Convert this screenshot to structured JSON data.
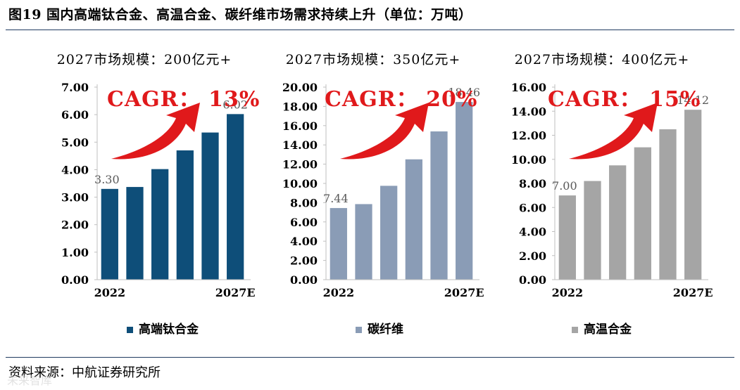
{
  "figure": {
    "title": "图19  国内高端钛合金、高温合金、碳纤维市场需求持续上升（单位：万吨）",
    "source": "资料来源：中航证券研究所",
    "watermark": "未来智库"
  },
  "chart_data": [
    {
      "type": "bar",
      "series_name": "高端钛合金",
      "subtitle": "2027市场规模：200亿元+",
      "cagr_label": "CAGR： 13%",
      "color": "#0e4e79",
      "categories": [
        "2022",
        "",
        "",
        "",
        "",
        "2027E"
      ],
      "values": [
        3.3,
        3.37,
        4.02,
        4.7,
        5.35,
        6.02
      ],
      "data_labels": [
        "3.30",
        "",
        "",
        "",
        "",
        "6.02"
      ],
      "y_ticks": [
        "0.00",
        "1.00",
        "2.00",
        "3.00",
        "4.00",
        "5.00",
        "6.00",
        "7.00"
      ],
      "ylim": [
        0,
        7
      ]
    },
    {
      "type": "bar",
      "series_name": "碳纤维",
      "subtitle": "2027市场规模：350亿元+",
      "cagr_label": "CAGR： 20%",
      "color": "#8a9cb6",
      "categories": [
        "2022",
        "",
        "",
        "",
        "",
        "2027E"
      ],
      "values": [
        7.44,
        7.85,
        9.75,
        12.5,
        15.4,
        18.46
      ],
      "data_labels": [
        "7.44",
        "",
        "",
        "",
        "",
        "18.46"
      ],
      "y_ticks": [
        "0.00",
        "2.00",
        "4.00",
        "6.00",
        "8.00",
        "10.00",
        "12.00",
        "14.00",
        "16.00",
        "18.00",
        "20.00"
      ],
      "ylim": [
        0,
        20
      ]
    },
    {
      "type": "bar",
      "series_name": "高温合金",
      "subtitle": "2027市场规模：400亿元+",
      "cagr_label": "CAGR： 15%",
      "color": "#a5a5a5",
      "categories": [
        "2022",
        "",
        "",
        "",
        "",
        "2027E"
      ],
      "values": [
        7.0,
        8.2,
        9.5,
        11.0,
        12.5,
        14.12
      ],
      "data_labels": [
        "7.00",
        "",
        "",
        "",
        "",
        "14.12"
      ],
      "y_ticks": [
        "0.00",
        "2.00",
        "4.00",
        "6.00",
        "8.00",
        "10.00",
        "12.00",
        "14.00",
        "16.00"
      ],
      "ylim": [
        0,
        16
      ]
    }
  ]
}
